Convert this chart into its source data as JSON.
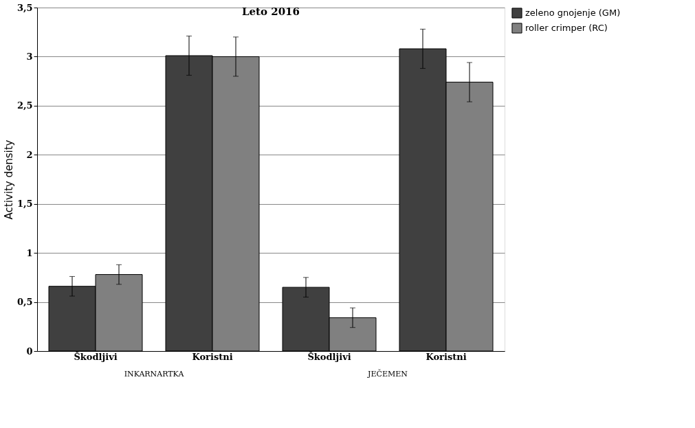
{
  "chart_data": {
    "type": "bar",
    "title": "Leto 2016",
    "ylabel": "Activity density",
    "categories": [
      "Škodljivi",
      "Koristni",
      "Škodljivi",
      "Koristni"
    ],
    "series": [
      {
        "name": "zeleno gnojenje (GM)",
        "color": "#404040",
        "values": [
          0.66,
          3.01,
          0.65,
          3.08
        ],
        "errors": [
          0.1,
          0.2,
          0.1,
          0.2
        ]
      },
      {
        "name": "roller crimper (RC)",
        "color": "#808080",
        "values": [
          0.78,
          3.0,
          0.34,
          2.74
        ],
        "errors": [
          0.1,
          0.2,
          0.1,
          0.2
        ]
      }
    ],
    "ylim": [
      0,
      3.5
    ],
    "yticks": [
      0,
      {
        "value": 0.5,
        "label": "0,5"
      },
      1,
      {
        "value": 1.5,
        "label": "1,5"
      },
      2,
      {
        "value": 2.5,
        "label": "2,5"
      },
      3,
      {
        "value": 3.5,
        "label": "3,5"
      }
    ],
    "grid": "y",
    "legend": "top right",
    "annotations": [
      "INKARNARTKA",
      "JEČEMEN"
    ]
  }
}
